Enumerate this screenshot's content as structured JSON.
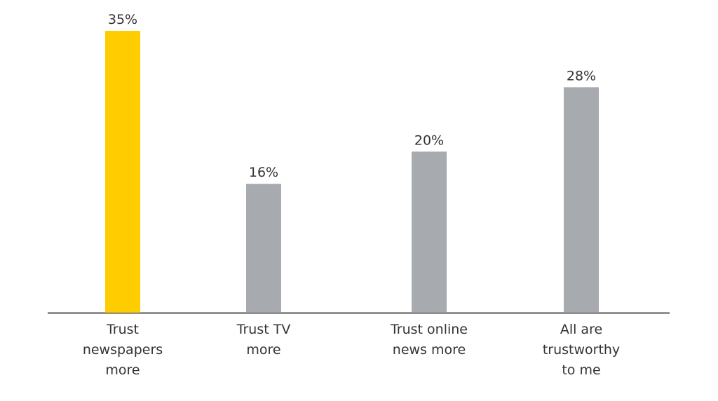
{
  "chart_data": {
    "type": "bar",
    "categories": [
      "Trust newspapers more",
      "Trust TV more",
      "Trust online news more",
      "All are trustworthy to me"
    ],
    "values": [
      35,
      16,
      20,
      28
    ],
    "value_labels": [
      "35%",
      "16%",
      "20%",
      "28%"
    ],
    "colors": [
      "#ffcc00",
      "#a7abaf",
      "#a7abaf",
      "#a7abaf"
    ],
    "ylim": [
      0,
      35
    ]
  }
}
